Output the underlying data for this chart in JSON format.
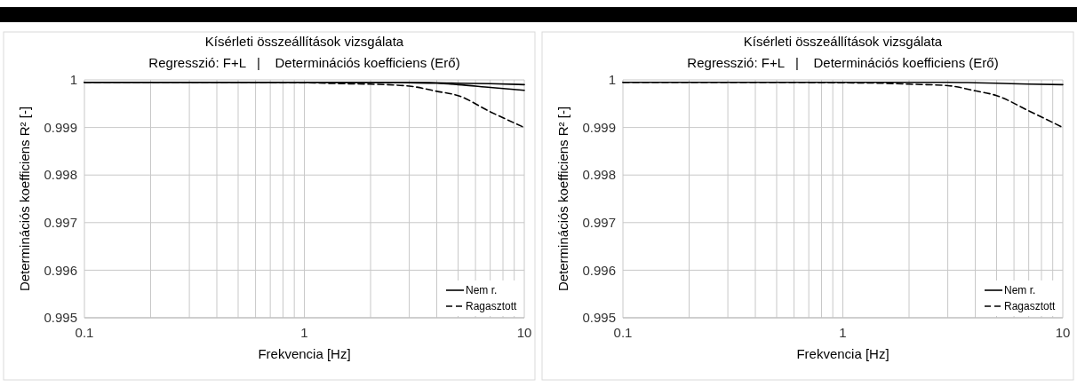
{
  "chart_data": [
    {
      "type": "line",
      "title": "Kísérleti összeállítások vizsgálata",
      "subtitle": "Regresszió: F+L   |    Determinációs koefficiens (Erő)",
      "xlabel": "Frekvencia [Hz]",
      "ylabel": "Determinációs koefficiens R² [-]",
      "log": "x",
      "grid": true,
      "legend": "bottom right",
      "xlim": [
        0.1,
        10
      ],
      "ylim": [
        0.995,
        1
      ],
      "xticks": [
        0.1,
        {
          "value": 0.2,
          "label": null
        },
        {
          "value": 0.3,
          "label": null
        },
        {
          "value": 0.4,
          "label": null
        },
        {
          "value": 0.5,
          "label": null
        },
        {
          "value": 0.6,
          "label": null
        },
        {
          "value": 0.7,
          "label": null
        },
        {
          "value": 0.8,
          "label": null
        },
        {
          "value": 0.9,
          "label": null
        },
        1,
        {
          "value": 2,
          "label": null
        },
        {
          "value": 3,
          "label": null
        },
        {
          "value": 4,
          "label": null
        },
        {
          "value": 5,
          "label": null
        },
        {
          "value": 6,
          "label": null
        },
        {
          "value": 7,
          "label": null
        },
        {
          "value": 8,
          "label": null
        },
        {
          "value": 9,
          "label": null
        },
        10
      ],
      "yticks": [
        0.995,
        0.996,
        0.997,
        0.998,
        0.999,
        1
      ],
      "x": [
        0.1,
        0.5,
        1,
        1.5,
        2,
        3,
        4,
        5,
        7,
        10
      ],
      "series": [
        {
          "name": "Nem r.",
          "color": "#000000",
          "line_style": "solid",
          "values": [
            0.99995,
            0.99995,
            0.99995,
            0.99995,
            0.99995,
            0.99995,
            0.99994,
            0.99993,
            0.99992,
            0.9999
          ]
        },
        {
          "color": "#000000",
          "line_style": "solid",
          "values": [
            0.99995,
            0.99995,
            0.99995,
            0.99995,
            0.99995,
            0.99994,
            0.99993,
            0.9999,
            0.99984,
            0.99978
          ]
        },
        {
          "name": "Ragasztott",
          "color": "#000000",
          "line_style": "dashed",
          "values": [
            0.99995,
            0.99995,
            0.99994,
            0.99992,
            0.99991,
            0.99987,
            0.99976,
            0.99967,
            0.99933,
            0.999
          ]
        }
      ]
    },
    {
      "type": "line",
      "title": "Kísérleti összeállítások vizsgálata",
      "subtitle": "Regresszió: F+L   |    Determinációs koefficiens (Erő)",
      "xlabel": "Frekvencia [Hz]",
      "ylabel": "Determinációs koefficiens R² [-]",
      "log": "x",
      "grid": true,
      "legend": "bottom right",
      "xlim": [
        0.1,
        10
      ],
      "ylim": [
        0.995,
        1
      ],
      "xticks": [
        0.1,
        {
          "value": 0.2,
          "label": null
        },
        {
          "value": 0.3,
          "label": null
        },
        {
          "value": 0.4,
          "label": null
        },
        {
          "value": 0.5,
          "label": null
        },
        {
          "value": 0.6,
          "label": null
        },
        {
          "value": 0.7,
          "label": null
        },
        {
          "value": 0.8,
          "label": null
        },
        {
          "value": 0.9,
          "label": null
        },
        1,
        {
          "value": 2,
          "label": null
        },
        {
          "value": 3,
          "label": null
        },
        {
          "value": 4,
          "label": null
        },
        {
          "value": 5,
          "label": null
        },
        {
          "value": 6,
          "label": null
        },
        {
          "value": 7,
          "label": null
        },
        {
          "value": 8,
          "label": null
        },
        {
          "value": 9,
          "label": null
        },
        10
      ],
      "yticks": [
        0.995,
        0.996,
        0.997,
        0.998,
        0.999,
        1
      ],
      "x": [
        0.1,
        0.5,
        1,
        1.5,
        2,
        3,
        4,
        5,
        7,
        10
      ],
      "series": [
        {
          "name": "Nem r.",
          "color": "#000000",
          "line_style": "solid",
          "values": [
            0.99995,
            0.99995,
            0.99995,
            0.99995,
            0.99995,
            0.99995,
            0.99994,
            0.99993,
            0.99991,
            0.9999
          ]
        },
        {
          "name": "Ragasztott",
          "color": "#000000",
          "line_style": "dashed",
          "values": [
            0.99995,
            0.99995,
            0.99994,
            0.99993,
            0.99991,
            0.99988,
            0.99977,
            0.99967,
            0.99935,
            0.999
          ]
        }
      ]
    }
  ]
}
